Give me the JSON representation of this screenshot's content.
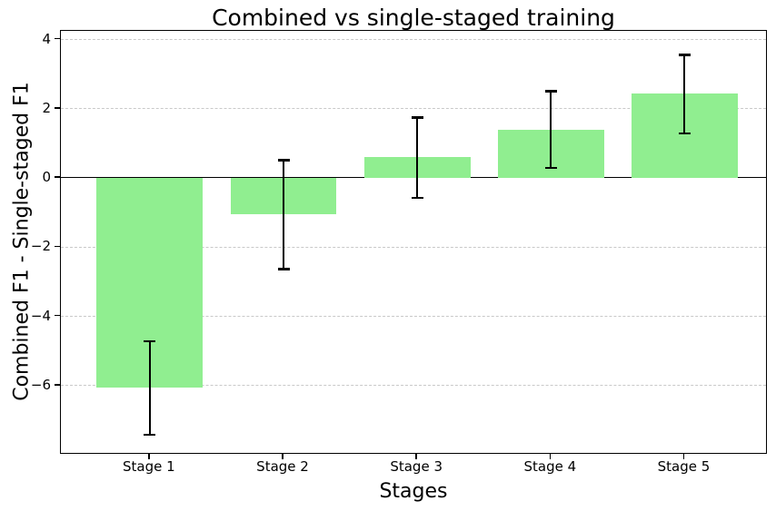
{
  "chart_data": {
    "type": "bar",
    "title": "Combined vs single-staged training",
    "xlabel": "Stages",
    "ylabel": "Combined F1 - Single-staged F1",
    "categories": [
      "Stage 1",
      "Stage 2",
      "Stage 3",
      "Stage 4",
      "Stage 5"
    ],
    "values": [
      -6.07,
      -1.05,
      0.61,
      1.4,
      2.45
    ],
    "errors": [
      {
        "low": -7.42,
        "high": -4.72
      },
      {
        "low": -2.64,
        "high": 0.51
      },
      {
        "low": -0.58,
        "high": 1.74
      },
      {
        "low": 0.29,
        "high": 2.5
      },
      {
        "low": 1.29,
        "high": 3.56
      }
    ],
    "yticks": [
      4,
      2,
      0,
      -2,
      -4,
      -6
    ],
    "ylim": [
      -8.0,
      4.25
    ],
    "grid": "horizontal-dashed",
    "zero_line": true,
    "legend": "none",
    "bar_color": "#90EE90",
    "error_color": "#000000",
    "grid_color": "#c9c9c9"
  }
}
